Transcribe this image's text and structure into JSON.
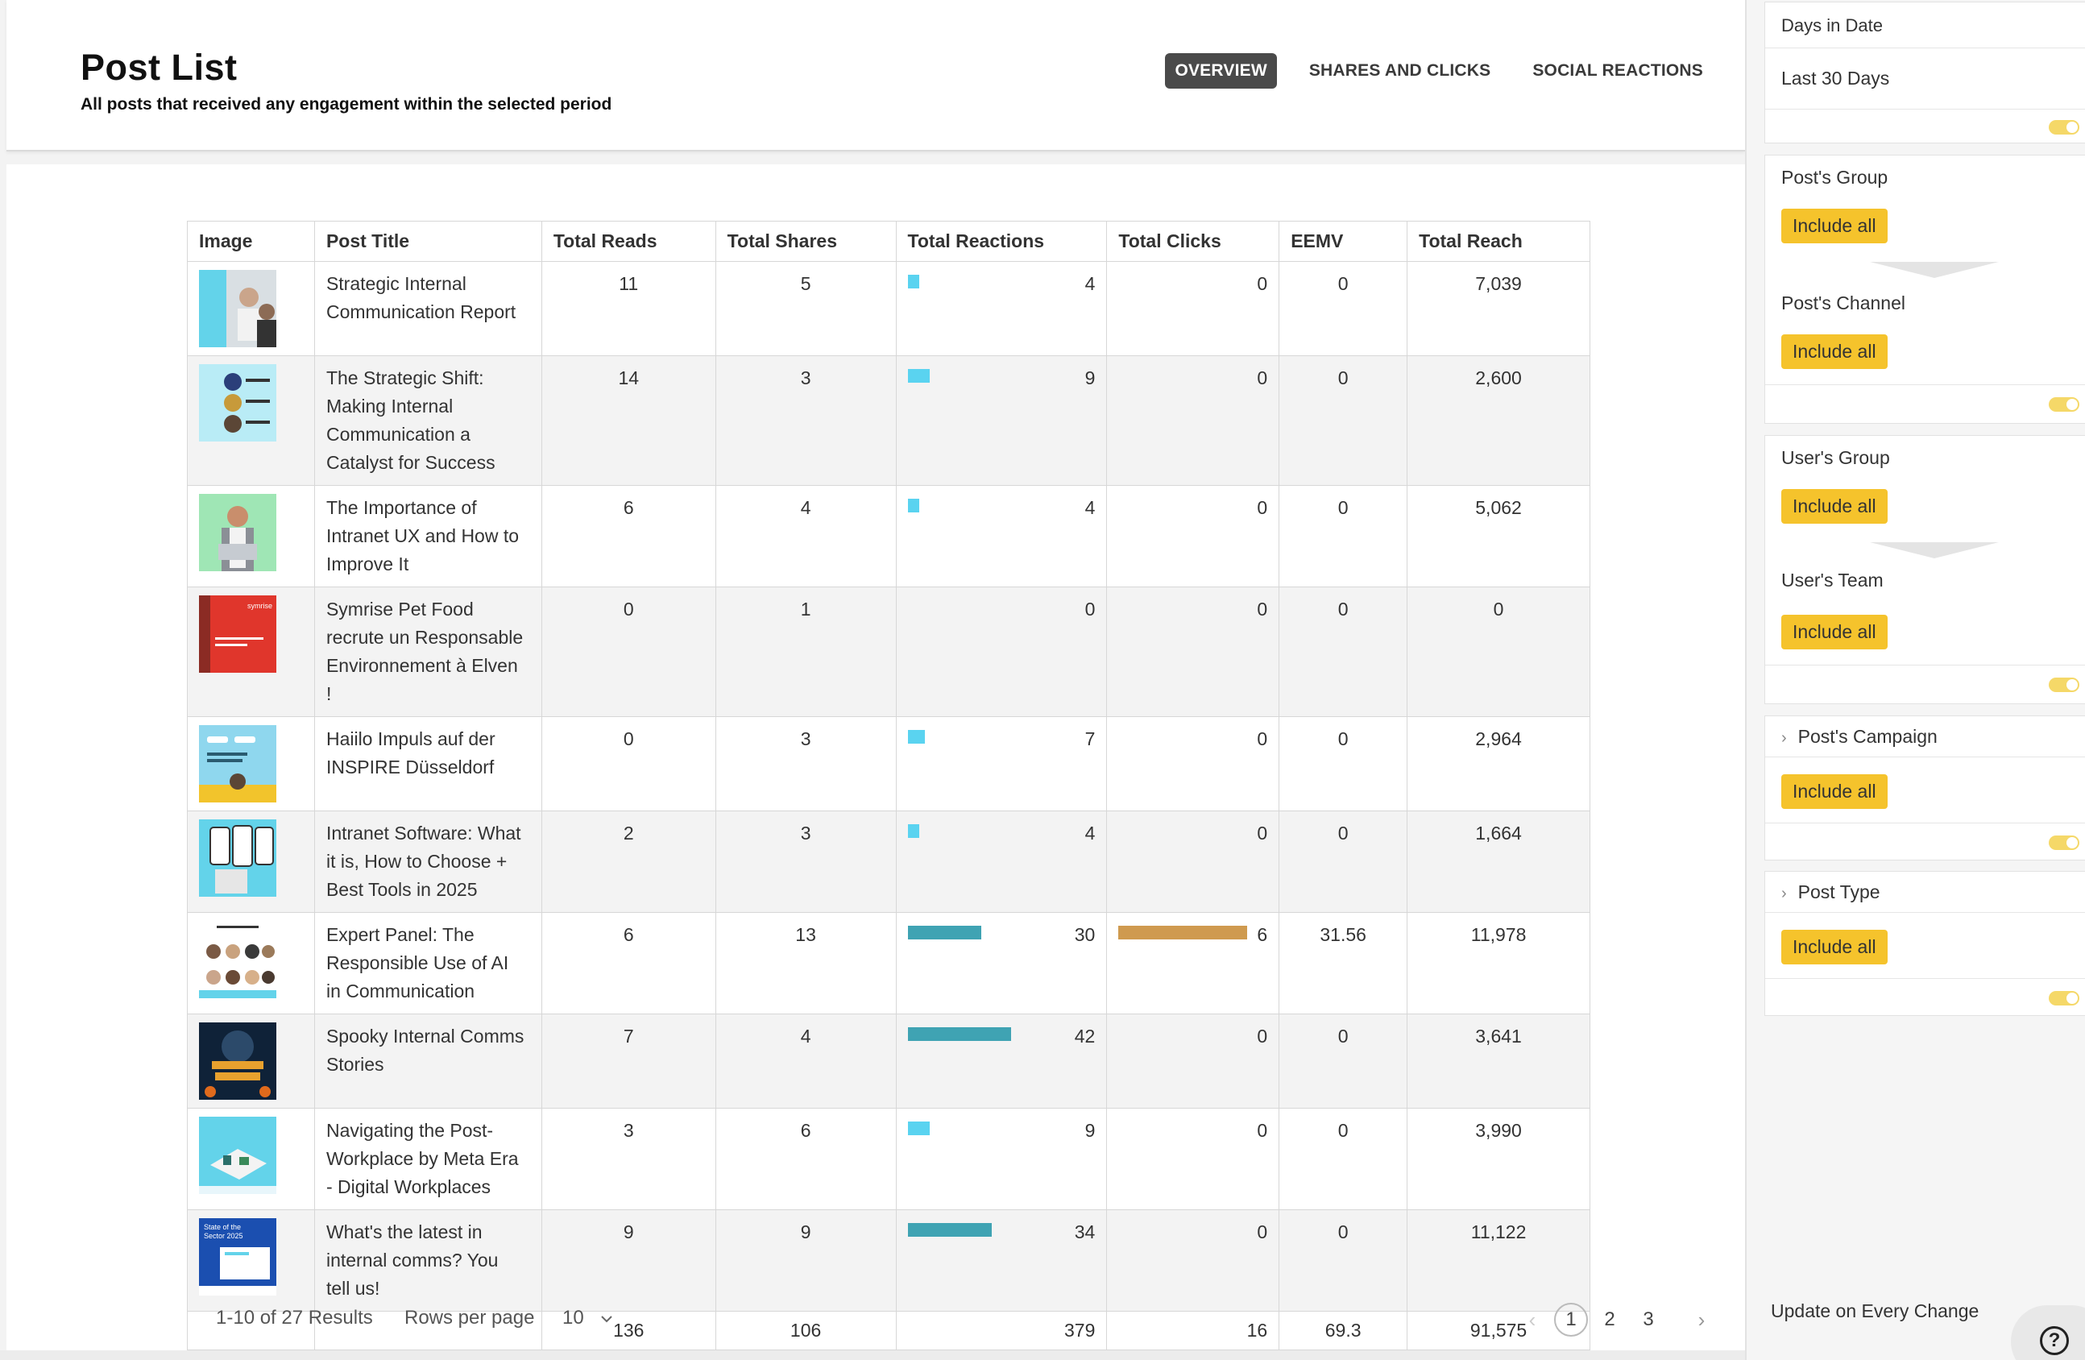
{
  "header": {
    "title": "Post List",
    "subtitle": "All posts that received any engagement within the selected period",
    "tabs": [
      {
        "label": "OVERVIEW",
        "active": true
      },
      {
        "label": "SHARES AND CLICKS",
        "active": false
      },
      {
        "label": "SOCIAL REACTIONS",
        "active": false
      }
    ]
  },
  "table": {
    "columns": [
      "Image",
      "Post Title",
      "Total Reads",
      "Total Shares",
      "Total Reactions",
      "Total Clicks",
      "EEMV",
      "Total Reach"
    ],
    "rows": [
      {
        "title_lines": [
          "Strategic Internal",
          "Communication Report"
        ],
        "reads": "11",
        "shares": "5",
        "reactions": "4",
        "reactions_num": 4,
        "clicks": "0",
        "clicks_num": 0,
        "eemv": "0",
        "reach": "7,039",
        "thumb": "people-office"
      },
      {
        "title_lines": [
          "The Strategic Shift:",
          "Making Internal",
          "Communication a",
          "Catalyst for Success"
        ],
        "reads": "14",
        "shares": "3",
        "reactions": "9",
        "reactions_num": 9,
        "clicks": "0",
        "clicks_num": 0,
        "eemv": "0",
        "reach": "2,600",
        "thumb": "speakers"
      },
      {
        "title_lines": [
          "The Importance of",
          "Intranet UX and How to",
          "Improve It"
        ],
        "reads": "6",
        "shares": "4",
        "reactions": "4",
        "reactions_num": 4,
        "clicks": "0",
        "clicks_num": 0,
        "eemv": "0",
        "reach": "5,062",
        "thumb": "man-laptop"
      },
      {
        "title_lines": [
          "Symrise Pet Food",
          "recrute un Responsable",
          "Environnement à Elven",
          "!"
        ],
        "reads": "0",
        "shares": "1",
        "reactions": "0",
        "reactions_num": 0,
        "clicks": "0",
        "clicks_num": 0,
        "eemv": "0",
        "reach": "0",
        "thumb": "symrise"
      },
      {
        "title_lines": [
          "Haiilo Impuls auf der",
          "INSPIRE Düsseldorf"
        ],
        "reads": "0",
        "shares": "3",
        "reactions": "7",
        "reactions_num": 7,
        "clicks": "0",
        "clicks_num": 0,
        "eemv": "0",
        "reach": "2,964",
        "thumb": "event"
      },
      {
        "title_lines": [
          "Intranet Software: What",
          "it is, How to Choose +",
          "Best Tools in 2025"
        ],
        "reads": "2",
        "shares": "3",
        "reactions": "4",
        "reactions_num": 4,
        "clicks": "0",
        "clicks_num": 0,
        "eemv": "0",
        "reach": "1,664",
        "thumb": "phones"
      },
      {
        "title_lines": [
          "Expert Panel: The",
          "Responsible Use of AI",
          "in Communication"
        ],
        "reads": "6",
        "shares": "13",
        "reactions": "30",
        "reactions_num": 30,
        "clicks": "6",
        "clicks_num": 6,
        "eemv": "31.56",
        "reach": "11,978",
        "thumb": "panel"
      },
      {
        "title_lines": [
          "Spooky Internal Comms",
          "Stories"
        ],
        "reads": "7",
        "shares": "4",
        "reactions": "42",
        "reactions_num": 42,
        "clicks": "0",
        "clicks_num": 0,
        "eemv": "0",
        "reach": "3,641",
        "thumb": "spooky"
      },
      {
        "title_lines": [
          "Navigating the Post-",
          "Workplace by Meta Era",
          "- Digital Workplaces"
        ],
        "reads": "3",
        "shares": "6",
        "reactions": "9",
        "reactions_num": 9,
        "clicks": "0",
        "clicks_num": 0,
        "eemv": "0",
        "reach": "3,990",
        "thumb": "workplace"
      },
      {
        "title_lines": [
          "What's the latest in",
          "internal comms? You",
          "tell us!"
        ],
        "reads": "9",
        "shares": "9",
        "reactions": "34",
        "reactions_num": 34,
        "clicks": "0",
        "clicks_num": 0,
        "eemv": "0",
        "reach": "11,122",
        "thumb": "state-sector"
      }
    ],
    "totals": {
      "reads": "136",
      "shares": "106",
      "reactions": "379",
      "clicks": "16",
      "eemv": "69.3",
      "reach": "91,575"
    },
    "colors": {
      "bar_light": "#5ad3f0",
      "bar_teal": "#3fa3b3",
      "bar_clicks": "#cf9a4f"
    }
  },
  "pagination": {
    "results_text": "1-10 of 27 Results",
    "rows_per_page_label": "Rows per page",
    "rows_per_page_value": "10",
    "pages": [
      "1",
      "2",
      "3"
    ],
    "current_page": "1"
  },
  "filters": {
    "days_in_date": {
      "label": "Days in Date",
      "value": "Last 30 Days"
    },
    "posts_group": {
      "label": "Post's Group",
      "button": "Include all"
    },
    "posts_channel": {
      "label": "Post's Channel",
      "button": "Include all"
    },
    "users_group": {
      "label": "User's Group",
      "button": "Include all"
    },
    "users_team": {
      "label": "User's Team",
      "button": "Include all"
    },
    "posts_campaign": {
      "label": "Post's Campaign",
      "button": "Include all"
    },
    "post_type": {
      "label": "Post Type",
      "button": "Include all"
    },
    "update_label": "Update on Every Change",
    "accent": "#f5c32c"
  }
}
